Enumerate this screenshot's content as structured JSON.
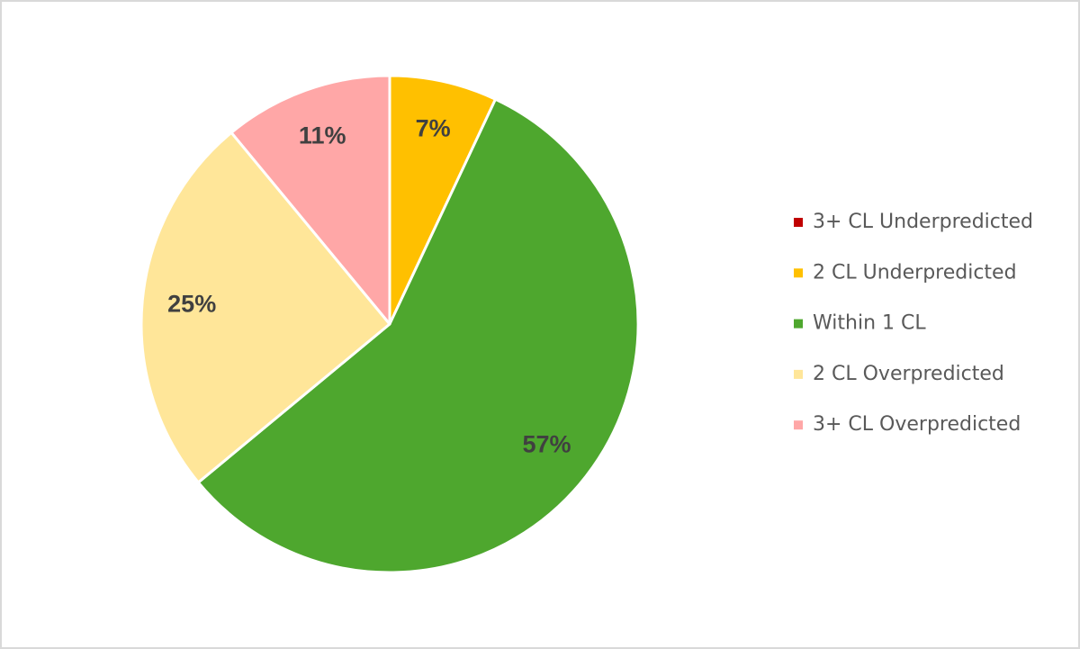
{
  "chart_data": {
    "type": "pie",
    "categories": [
      "3+ CL Underpredicted",
      "2 CL Underpredicted",
      "Within 1 CL",
      "2 CL Overpredicted",
      "3+ CL Overpredicted"
    ],
    "values": [
      0,
      7,
      57,
      25,
      11
    ],
    "value_labels": [
      null,
      "7%",
      "57%",
      "25%",
      "11%"
    ],
    "colors": [
      "#c00000",
      "#ffc000",
      "#4ea72e",
      "#ffe699",
      "#ffa7a7"
    ],
    "legend": "right"
  }
}
